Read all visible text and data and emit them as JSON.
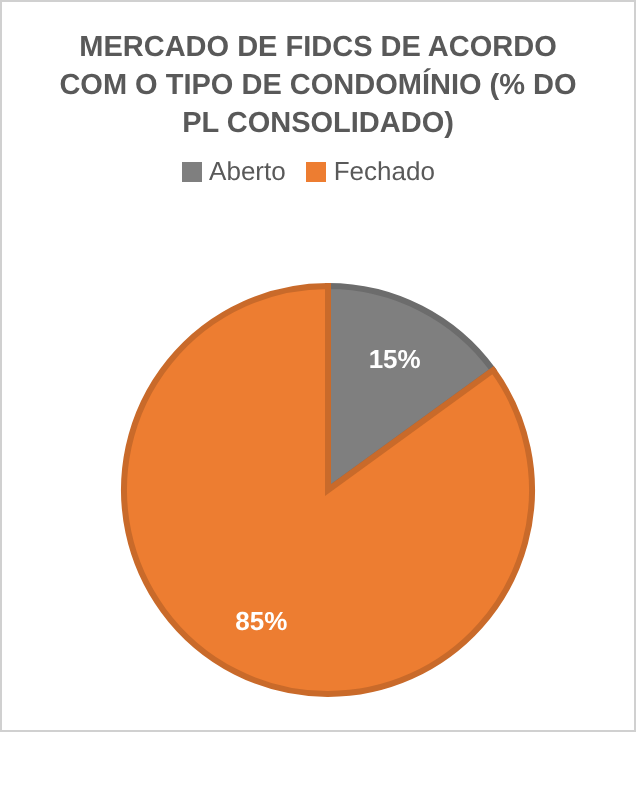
{
  "chart_data": {
    "type": "pie",
    "title": "MERCADO DE FIDCS DE ACORDO COM O TIPO DE CONDOMÍNIO (% DO PL CONSOLIDADO)",
    "categories": [
      "Aberto",
      "Fechado"
    ],
    "values": [
      15,
      85
    ],
    "colors": [
      "#7f7f7f",
      "#ed7d31"
    ],
    "value_labels": [
      "15%",
      "85%"
    ],
    "legend": "top"
  }
}
